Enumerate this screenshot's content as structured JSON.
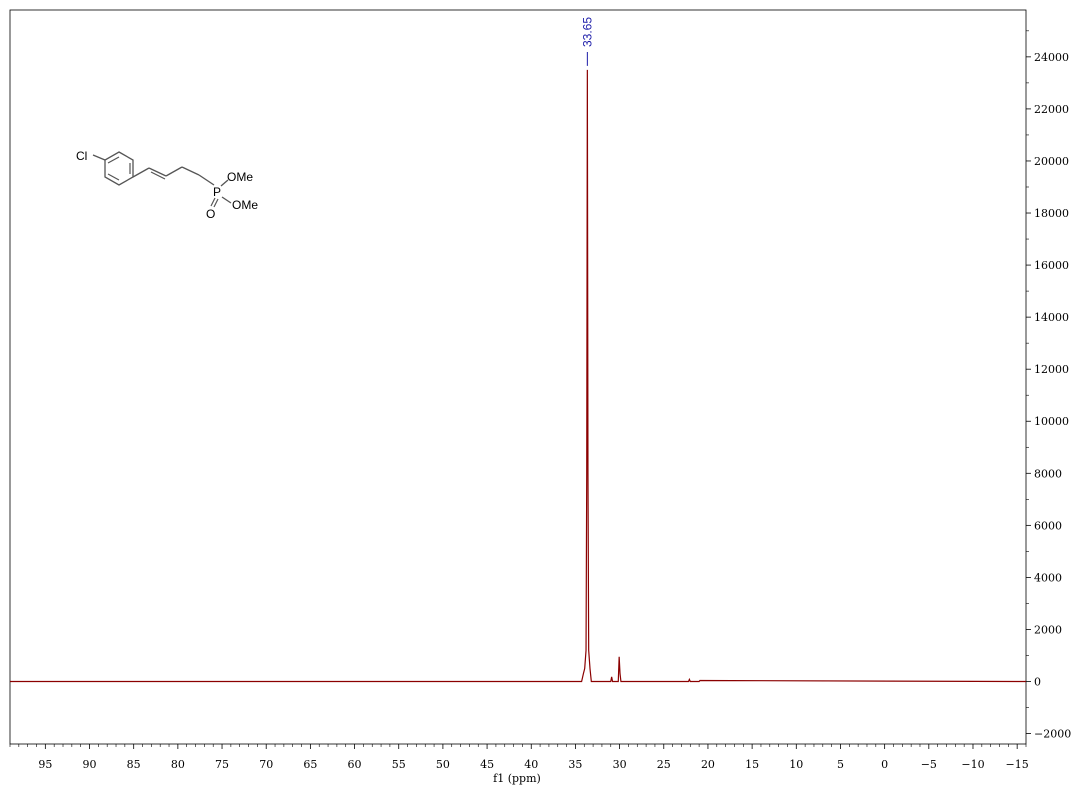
{
  "chart_data": {
    "type": "line",
    "title": "",
    "xlabel": "f1 (ppm)",
    "ylabel": "",
    "xlim": [
      99,
      -16
    ],
    "ylim": [
      -2400,
      25800
    ],
    "x_ticks": [
      95,
      90,
      85,
      80,
      75,
      70,
      65,
      60,
      55,
      50,
      45,
      40,
      35,
      30,
      25,
      20,
      15,
      10,
      5,
      0,
      -5,
      -10,
      -15
    ],
    "x_tick_labels": [
      "95",
      "90",
      "85",
      "80",
      "75",
      "70",
      "65",
      "60",
      "55",
      "50",
      "45",
      "40",
      "35",
      "30",
      "25",
      "20",
      "15",
      "10",
      "5",
      "0",
      "−5",
      "−10",
      "−15"
    ],
    "y_ticks": [
      -2000,
      0,
      2000,
      4000,
      6000,
      8000,
      10000,
      12000,
      14000,
      16000,
      18000,
      20000,
      22000,
      24000
    ],
    "y_tick_labels": [
      "−2000",
      "0",
      "2000",
      "4000",
      "6000",
      "8000",
      "10000",
      "12000",
      "14000",
      "16000",
      "18000",
      "20000",
      "22000",
      "24000"
    ],
    "grid": false,
    "colors": {
      "spectrum": "#8b0000",
      "peak_label": "#1a1aa8",
      "axis": "#000000"
    },
    "series": [
      {
        "x": [
          99,
          34.3,
          34.1,
          33.95,
          33.8,
          33.72,
          33.65,
          33.58,
          33.5,
          33.35,
          33.2,
          31.0,
          30.9,
          30.8,
          30.15,
          30.05,
          29.95,
          29.85,
          22.2,
          22.1,
          22.0,
          21.0,
          20.9,
          -16
        ],
        "y": [
          0,
          0,
          300,
          500,
          1200,
          8000,
          23500,
          8000,
          1200,
          500,
          0,
          0,
          180,
          0,
          0,
          950,
          300,
          0,
          0,
          80,
          0,
          0,
          40,
          0
        ]
      }
    ],
    "peak_labels": [
      {
        "x": 33.65,
        "label": "33.65"
      }
    ],
    "annotations": {
      "molecule_labels": [
        "Cl",
        "OMe",
        "P",
        "OMe",
        "O"
      ]
    }
  }
}
